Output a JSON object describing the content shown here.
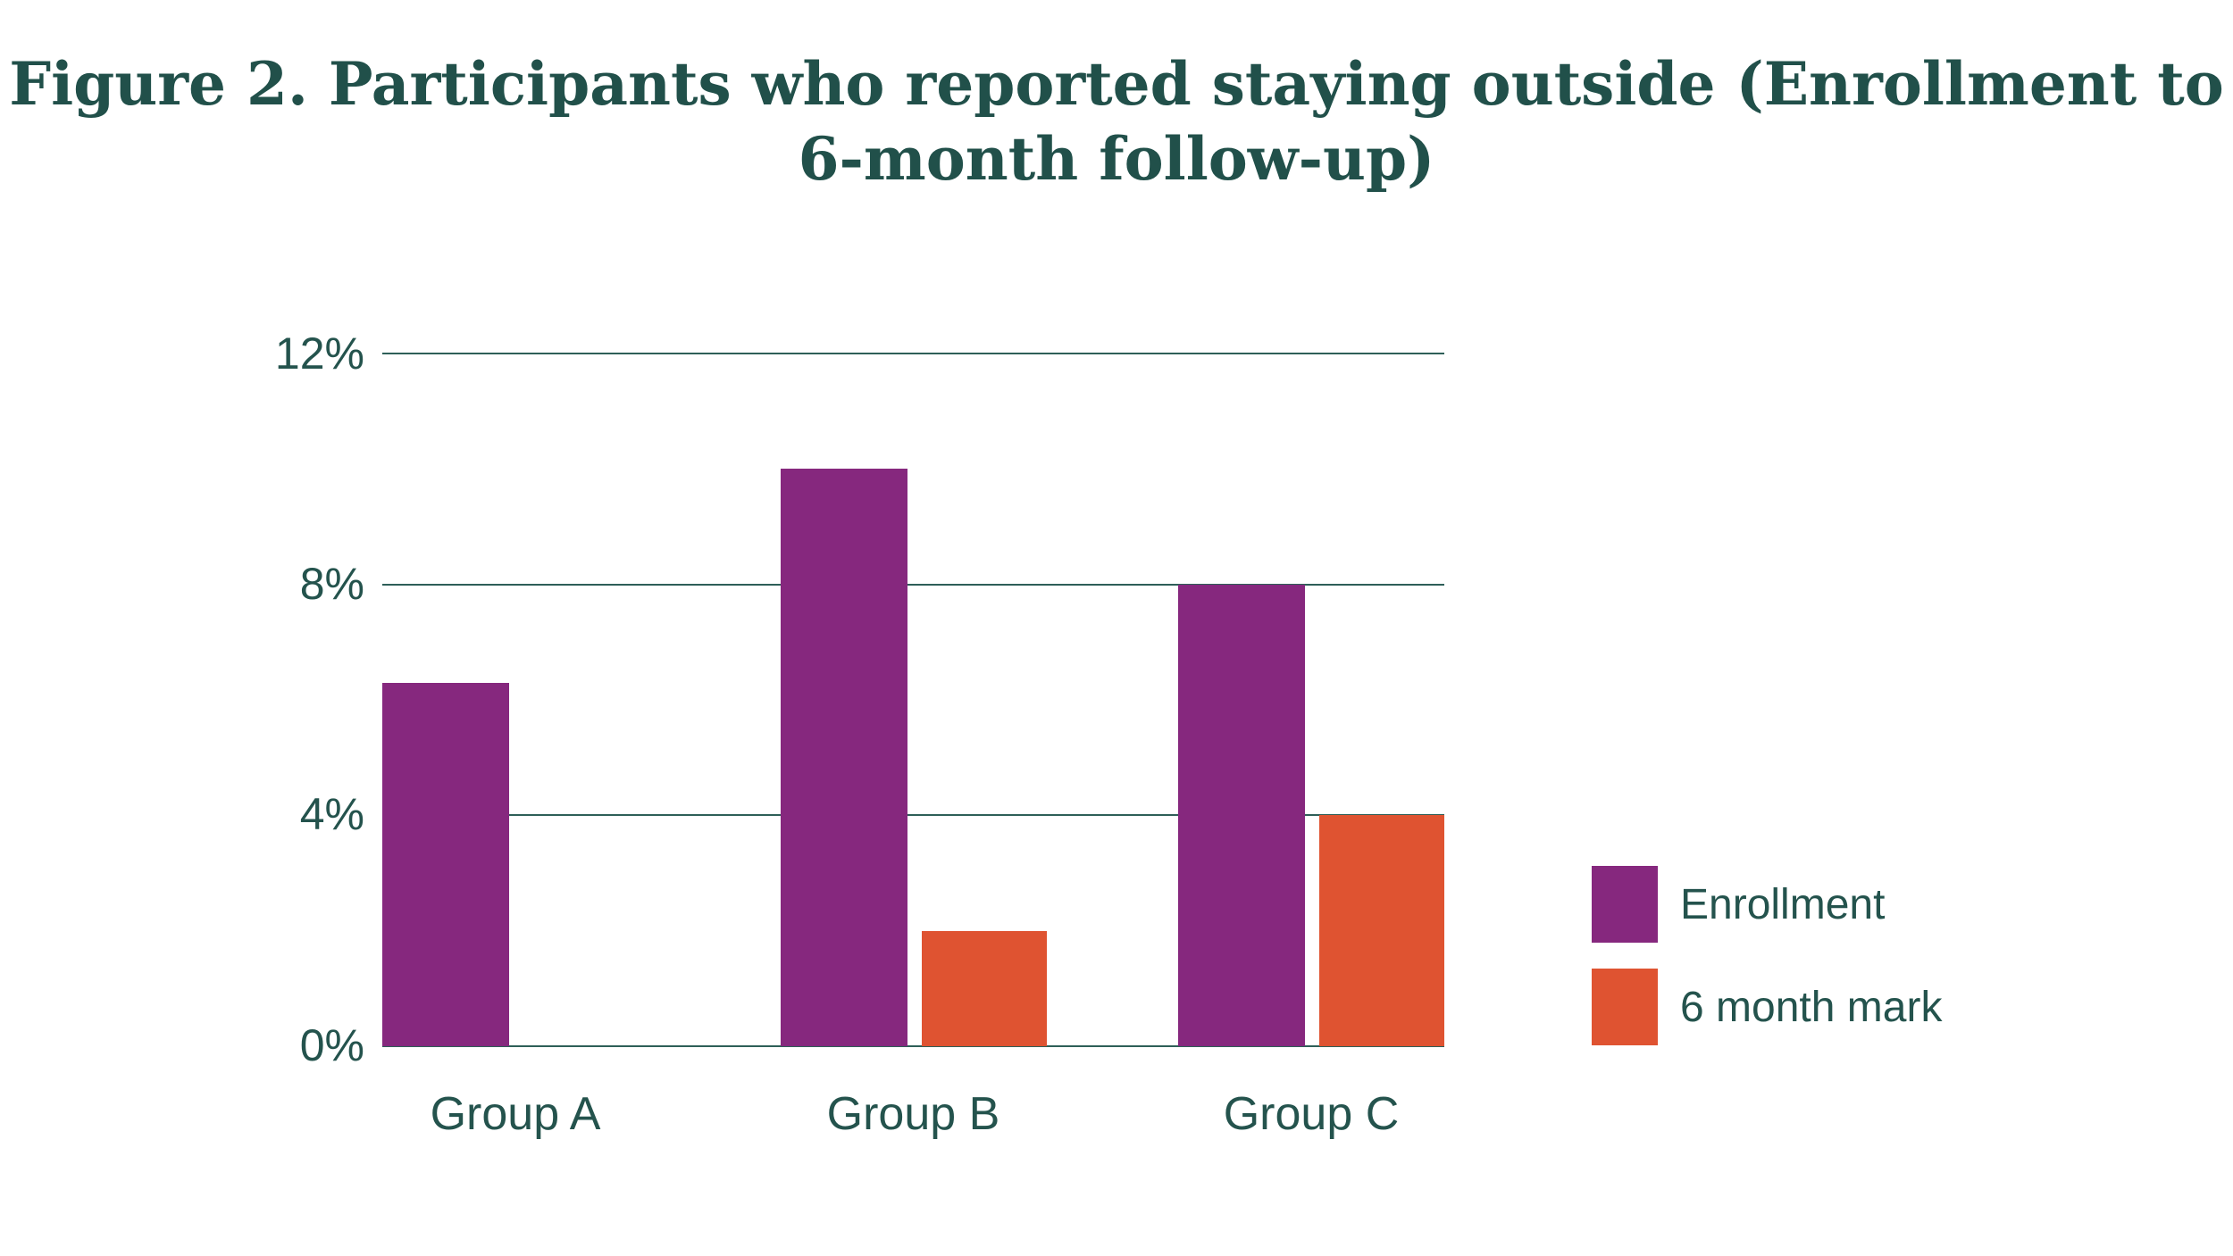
{
  "title": {
    "text": "Figure 2. Participants who reported staying outside (Enrollment to 6-month follow-up)",
    "lines": [
      "Figure 2. Participants who reported staying outside (Enrollment to",
      "6-month follow-up)"
    ],
    "color": "#21504a"
  },
  "chart_data": {
    "type": "bar",
    "title": "Figure 2. Participants who reported staying outside (Enrollment to 6-month follow-up)",
    "categories": [
      "Group A",
      "Group B",
      "Group C"
    ],
    "series": [
      {
        "name": "Enrollment",
        "color": "#86287e",
        "values": [
          6.3,
          10,
          8
        ]
      },
      {
        "name": "6 month mark",
        "color": "#df5331",
        "values": [
          0,
          2,
          4
        ]
      }
    ],
    "xlabel": "",
    "ylabel": "",
    "ylim": [
      0,
      12
    ],
    "y_ticks": [
      "0%",
      "4%",
      "8%",
      "12%"
    ],
    "grid": true,
    "gridline_color": "#2e5f58",
    "text_color": "#24534d",
    "legend_position": "right"
  }
}
